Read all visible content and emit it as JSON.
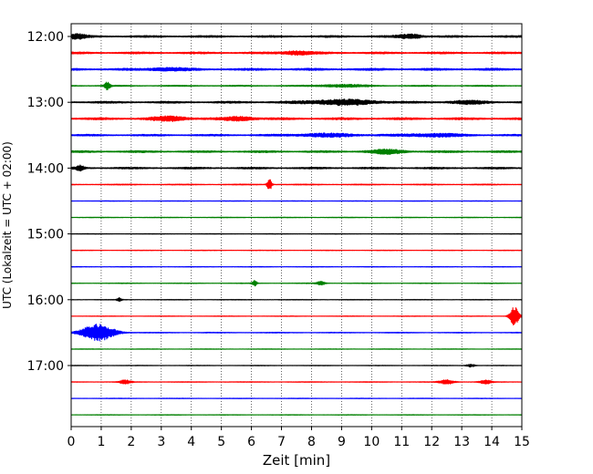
{
  "chart_data": {
    "type": "line",
    "title": "",
    "xlabel": "Zeit  [min]",
    "ylabel": "UTC (Lokalzeit = UTC + 02:00)",
    "xlim": [
      0,
      15
    ],
    "x_ticks": [
      "0",
      "1",
      "2",
      "3",
      "4",
      "5",
      "6",
      "7",
      "8",
      "9",
      "10",
      "11",
      "12",
      "13",
      "14",
      "15"
    ],
    "y_tick_labels": [
      {
        "trace": 0,
        "label": "12:00"
      },
      {
        "trace": 4,
        "label": "13:00"
      },
      {
        "trace": 8,
        "label": "14:00"
      },
      {
        "trace": 12,
        "label": "15:00"
      },
      {
        "trace": 16,
        "label": "16:00"
      },
      {
        "trace": 20,
        "label": "17:00"
      }
    ],
    "grid_x": true,
    "trace_interval_min": 15,
    "color_cycle": [
      "#000000",
      "#ff0000",
      "#0000ff",
      "#008000"
    ],
    "traces": [
      {
        "start": "12:00",
        "color": "#000000",
        "level": 1.0,
        "bursts": [
          {
            "x": 0.2,
            "w": 0.3,
            "a": 2.4
          },
          {
            "x": 11.3,
            "w": 0.4,
            "a": 2.2
          }
        ]
      },
      {
        "start": "12:15",
        "color": "#ff0000",
        "level": 1.0,
        "bursts": [
          {
            "x": 7.5,
            "w": 0.5,
            "a": 2.0
          }
        ]
      },
      {
        "start": "12:30",
        "color": "#0000ff",
        "level": 1.1,
        "bursts": [
          {
            "x": 3.2,
            "w": 0.6,
            "a": 1.6
          }
        ]
      },
      {
        "start": "12:45",
        "color": "#008000",
        "level": 0.6,
        "bursts": [
          {
            "x": 1.2,
            "w": 0.1,
            "a": 4.0
          },
          {
            "x": 9.0,
            "w": 0.8,
            "a": 1.3
          }
        ]
      },
      {
        "start": "13:00",
        "color": "#000000",
        "level": 1.0,
        "bursts": [
          {
            "x": 9.0,
            "w": 1.2,
            "a": 2.6
          },
          {
            "x": 13.2,
            "w": 0.6,
            "a": 1.6
          }
        ]
      },
      {
        "start": "13:15",
        "color": "#ff0000",
        "level": 1.1,
        "bursts": [
          {
            "x": 3.3,
            "w": 0.6,
            "a": 2.2
          },
          {
            "x": 5.6,
            "w": 0.5,
            "a": 2.0
          }
        ]
      },
      {
        "start": "13:30",
        "color": "#0000ff",
        "level": 0.9,
        "bursts": [
          {
            "x": 8.5,
            "w": 1.0,
            "a": 1.6
          },
          {
            "x": 12.0,
            "w": 1.0,
            "a": 1.5
          }
        ]
      },
      {
        "start": "13:45",
        "color": "#008000",
        "level": 1.0,
        "bursts": [
          {
            "x": 10.5,
            "w": 0.6,
            "a": 2.0
          }
        ]
      },
      {
        "start": "14:00",
        "color": "#000000",
        "level": 0.9,
        "bursts": [
          {
            "x": 0.3,
            "w": 0.15,
            "a": 2.6
          }
        ]
      },
      {
        "start": "14:15",
        "color": "#ff0000",
        "level": 0.5,
        "bursts": [
          {
            "x": 6.6,
            "w": 0.08,
            "a": 6.5
          }
        ]
      },
      {
        "start": "14:30",
        "color": "#0000ff",
        "level": 0.3,
        "bursts": []
      },
      {
        "start": "14:45",
        "color": "#008000",
        "level": 0.35,
        "bursts": []
      },
      {
        "start": "15:00",
        "color": "#000000",
        "level": 0.3,
        "bursts": []
      },
      {
        "start": "15:15",
        "color": "#ff0000",
        "level": 0.3,
        "bursts": []
      },
      {
        "start": "15:30",
        "color": "#0000ff",
        "level": 0.3,
        "bursts": []
      },
      {
        "start": "15:45",
        "color": "#008000",
        "level": 0.35,
        "bursts": [
          {
            "x": 6.1,
            "w": 0.08,
            "a": 3.0
          },
          {
            "x": 8.3,
            "w": 0.15,
            "a": 2.0
          }
        ]
      },
      {
        "start": "16:00",
        "color": "#000000",
        "level": 0.3,
        "bursts": [
          {
            "x": 1.6,
            "w": 0.08,
            "a": 2.0
          }
        ]
      },
      {
        "start": "16:15",
        "color": "#ff0000",
        "level": 0.3,
        "bursts": [
          {
            "x": 14.75,
            "w": 0.15,
            "a": 11.0
          }
        ]
      },
      {
        "start": "16:30",
        "color": "#0000ff",
        "level": 0.4,
        "bursts": [
          {
            "x": 0.9,
            "w": 0.55,
            "a": 9.0
          }
        ]
      },
      {
        "start": "16:45",
        "color": "#008000",
        "level": 0.3,
        "bursts": []
      },
      {
        "start": "17:00",
        "color": "#000000",
        "level": 0.3,
        "bursts": [
          {
            "x": 13.3,
            "w": 0.15,
            "a": 1.5
          }
        ]
      },
      {
        "start": "17:15",
        "color": "#ff0000",
        "level": 0.35,
        "bursts": [
          {
            "x": 1.8,
            "w": 0.2,
            "a": 2.0
          },
          {
            "x": 12.5,
            "w": 0.25,
            "a": 2.4
          },
          {
            "x": 13.8,
            "w": 0.2,
            "a": 2.0
          }
        ]
      },
      {
        "start": "17:30",
        "color": "#0000ff",
        "level": 0.3,
        "bursts": []
      },
      {
        "start": "17:45",
        "color": "#008000",
        "level": 0.3,
        "bursts": []
      }
    ]
  }
}
